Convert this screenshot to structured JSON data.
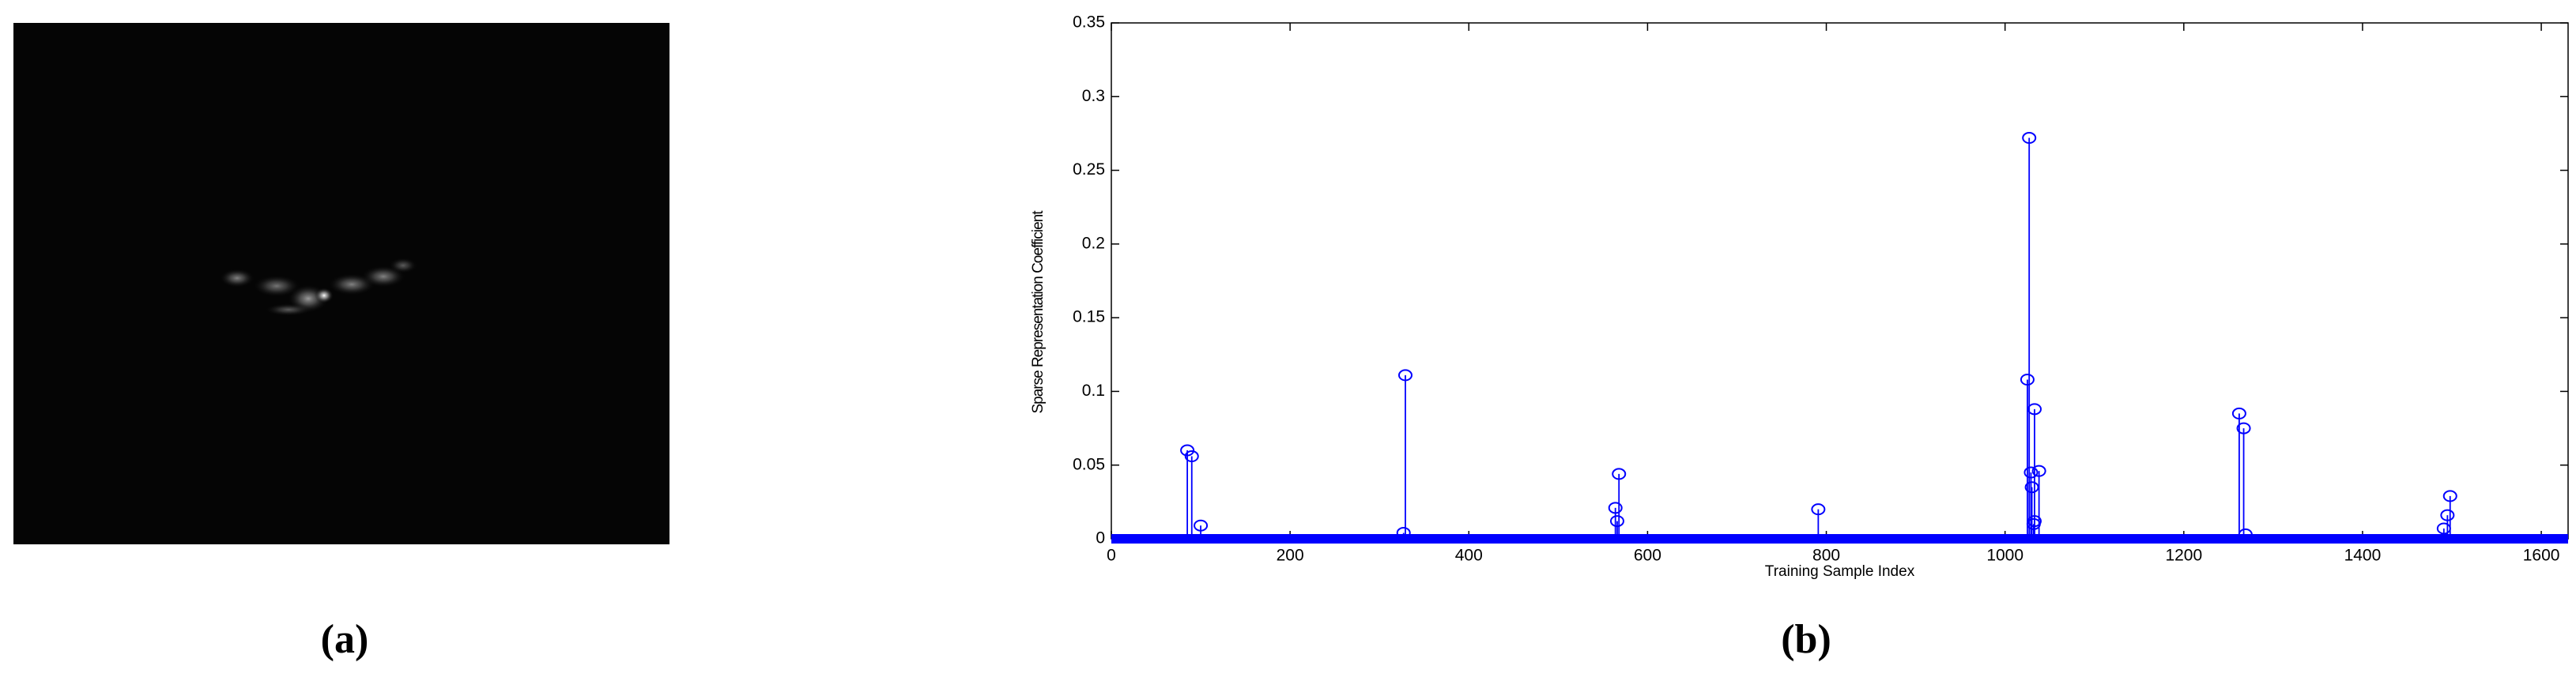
{
  "figure": {
    "panel_labels": [
      "(a)",
      "(b)"
    ]
  },
  "chart_data": {
    "type": "stem",
    "xlabel": "Training Sample Index",
    "ylabel": "Sparse Representation Coefficient",
    "x": [
      85,
      90,
      100,
      327,
      329,
      564,
      566,
      568,
      791,
      1025,
      1027,
      1029,
      1030,
      1032,
      1033,
      1033,
      1038,
      1262,
      1267,
      1269,
      1491,
      1495,
      1498
    ],
    "values": [
      0.06,
      0.056,
      0.009,
      0.004,
      0.111,
      0.021,
      0.012,
      0.044,
      0.02,
      0.108,
      0.272,
      0.045,
      0.035,
      0.01,
      0.088,
      0.012,
      0.046,
      0.085,
      0.075,
      0.003,
      0.007,
      0.016,
      0.029
    ],
    "color": "#0000ff",
    "xlim": [
      0,
      1630
    ],
    "xticks": [
      0,
      200,
      400,
      600,
      800,
      1000,
      1200,
      1400,
      1600
    ],
    "ylim": [
      0,
      0.35
    ],
    "yticks": [
      0,
      0.05,
      0.1,
      0.15,
      0.2,
      0.25,
      0.3,
      0.35
    ]
  }
}
